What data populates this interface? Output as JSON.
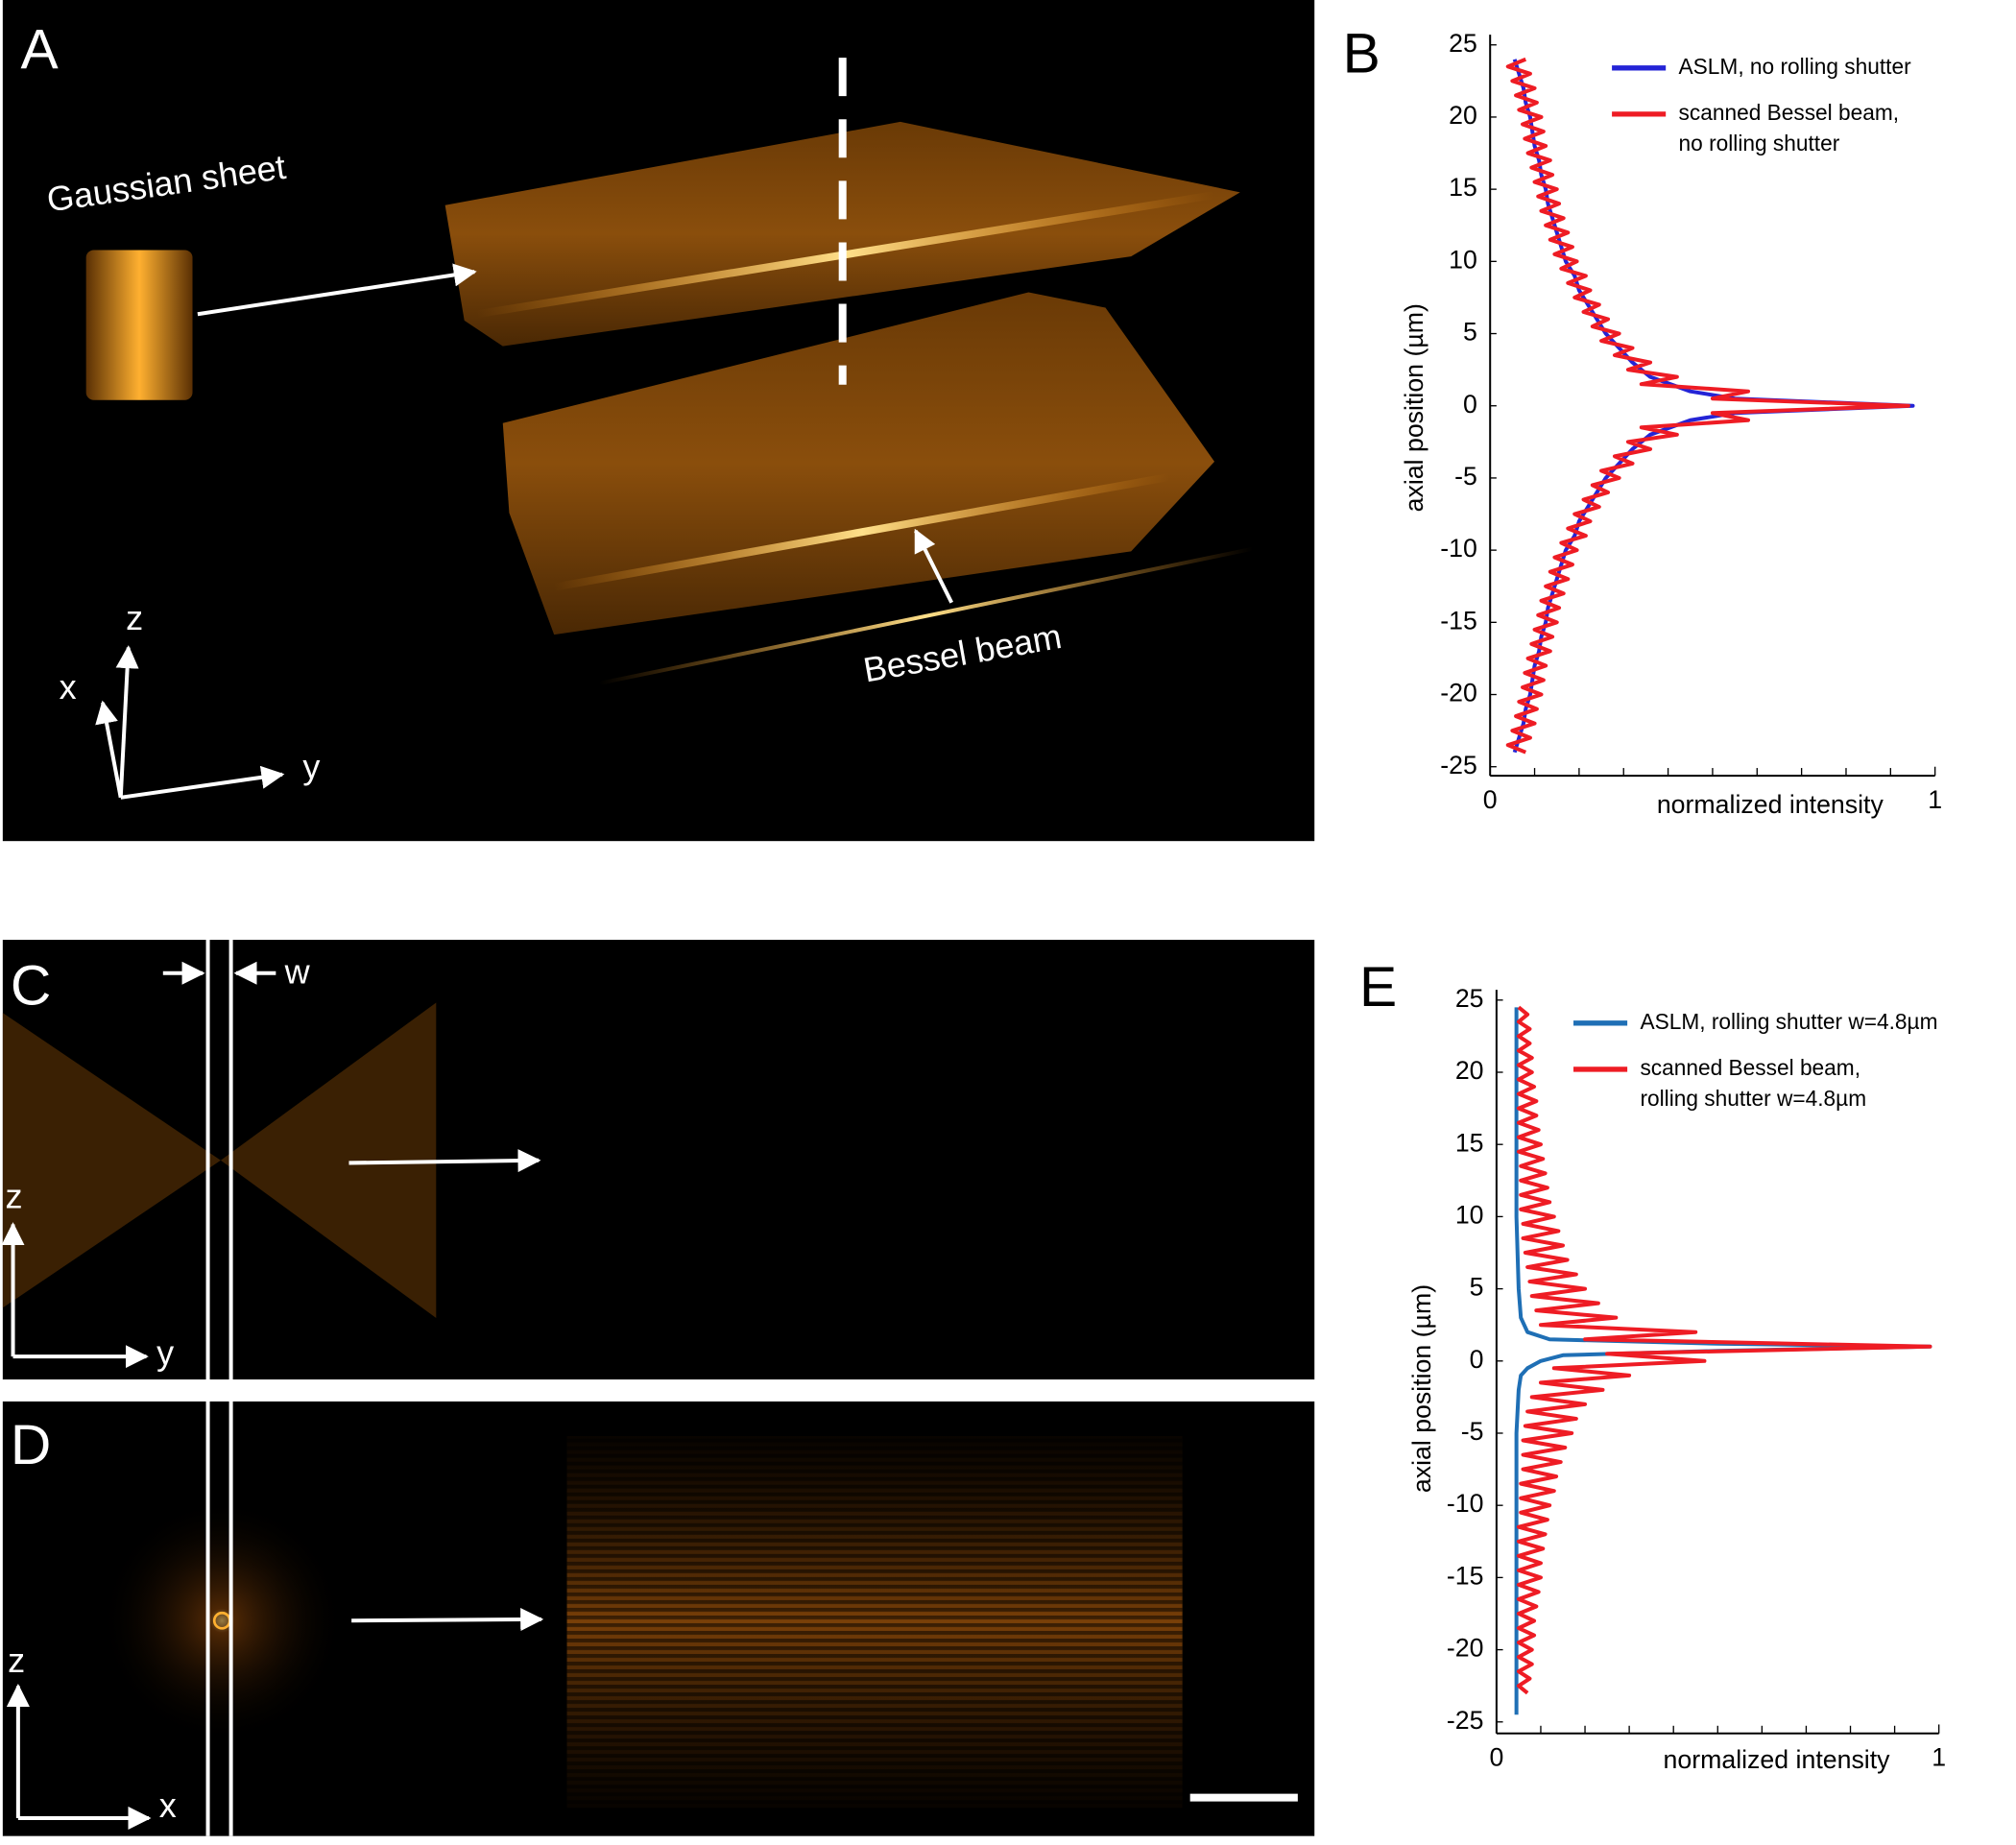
{
  "panels": {
    "A": {
      "label": "A",
      "sheet": "Gaussian sheet",
      "beam": "Bessel beam",
      "axis_x": "x",
      "axis_y": "y",
      "axis_z": "z"
    },
    "C": {
      "label": "C",
      "width": "w",
      "axis_z": "z",
      "axis_y": "y"
    },
    "D": {
      "label": "D",
      "axis_z": "z",
      "axis_x": "x"
    }
  },
  "chart_data": [
    {
      "type": "line",
      "label": "B",
      "xlabel": "normalized intensity",
      "ylabel": "axial position (µm)",
      "xlim": [
        0,
        1
      ],
      "ylim": [
        -25,
        25
      ],
      "xticks": [
        0,
        1
      ],
      "xminorticks": [
        0.1,
        0.2,
        0.3,
        0.4,
        0.5,
        0.6,
        0.7,
        0.8,
        0.9
      ],
      "yticks": [
        -25,
        -20,
        -15,
        -10,
        -5,
        0,
        5,
        10,
        15,
        20,
        25
      ],
      "series": [
        {
          "name": [
            "ASLM, no rolling shutter"
          ],
          "color": "#2424d6",
          "y": [
            24,
            23,
            22,
            21,
            20,
            19,
            18,
            17,
            16,
            15,
            14,
            13,
            12,
            11,
            10,
            9,
            8,
            7,
            6,
            5,
            4,
            3,
            2,
            1,
            0.5,
            0,
            -0.5,
            -1,
            -2,
            -3,
            -4,
            -5,
            -6,
            -7,
            -8,
            -9,
            -10,
            -11,
            -12,
            -13,
            -14,
            -15,
            -16,
            -17,
            -18,
            -19,
            -20,
            -21,
            -22,
            -23,
            -24
          ],
          "x": [
            0.055,
            0.065,
            0.075,
            0.08,
            0.09,
            0.095,
            0.1,
            0.11,
            0.115,
            0.125,
            0.13,
            0.14,
            0.15,
            0.16,
            0.17,
            0.19,
            0.2,
            0.22,
            0.24,
            0.26,
            0.29,
            0.32,
            0.36,
            0.45,
            0.55,
            0.95,
            0.55,
            0.45,
            0.36,
            0.32,
            0.29,
            0.26,
            0.24,
            0.22,
            0.2,
            0.19,
            0.17,
            0.16,
            0.15,
            0.14,
            0.13,
            0.125,
            0.115,
            0.11,
            0.1,
            0.095,
            0.09,
            0.08,
            0.075,
            0.065,
            0.055
          ]
        },
        {
          "name": [
            "scanned Bessel beam,",
            "no rolling shutter"
          ],
          "color": "#ee1c24",
          "y": [
            24,
            23.5,
            23,
            22.5,
            22,
            21.5,
            21,
            20.5,
            20,
            19.5,
            19,
            18.5,
            18,
            17.5,
            17,
            16.5,
            16,
            15.5,
            15,
            14.5,
            14,
            13.5,
            13,
            12.5,
            12,
            11.5,
            11,
            10.5,
            10,
            9.5,
            9,
            8.5,
            8,
            7.5,
            7,
            6.5,
            6,
            5.5,
            5,
            4.5,
            4,
            3.5,
            3,
            2.5,
            2,
            1.5,
            1,
            0.5,
            0,
            -0.5,
            -1,
            -1.5,
            -2,
            -2.5,
            -3,
            -3.5,
            -4,
            -4.5,
            -5,
            -5.5,
            -6,
            -6.5,
            -7,
            -7.5,
            -8,
            -8.5,
            -9,
            -9.5,
            -10,
            -10.5,
            -11,
            -11.5,
            -12,
            -12.5,
            -13,
            -13.5,
            -14,
            -14.5,
            -15,
            -15.5,
            -16,
            -16.5,
            -17,
            -17.5,
            -18,
            -18.5,
            -19,
            -19.5,
            -20,
            -20.5,
            -21,
            -21.5,
            -22,
            -22.5,
            -23,
            -23.5,
            -24
          ],
          "x": [
            0.08,
            0.04,
            0.09,
            0.05,
            0.1,
            0.058,
            0.105,
            0.065,
            0.115,
            0.073,
            0.12,
            0.078,
            0.125,
            0.085,
            0.135,
            0.093,
            0.14,
            0.1,
            0.15,
            0.108,
            0.155,
            0.115,
            0.165,
            0.125,
            0.175,
            0.135,
            0.185,
            0.145,
            0.195,
            0.16,
            0.215,
            0.175,
            0.225,
            0.19,
            0.245,
            0.21,
            0.265,
            0.23,
            0.29,
            0.25,
            0.32,
            0.28,
            0.36,
            0.31,
            0.42,
            0.34,
            0.58,
            0.5,
            0.94,
            0.5,
            0.58,
            0.34,
            0.42,
            0.31,
            0.36,
            0.28,
            0.32,
            0.25,
            0.29,
            0.23,
            0.265,
            0.21,
            0.245,
            0.19,
            0.225,
            0.175,
            0.215,
            0.16,
            0.195,
            0.145,
            0.185,
            0.135,
            0.175,
            0.125,
            0.165,
            0.115,
            0.155,
            0.108,
            0.15,
            0.1,
            0.14,
            0.093,
            0.135,
            0.085,
            0.125,
            0.078,
            0.12,
            0.073,
            0.115,
            0.065,
            0.105,
            0.058,
            0.1,
            0.05,
            0.09,
            0.04,
            0.08
          ]
        }
      ]
    },
    {
      "type": "line",
      "label": "E",
      "xlabel": "normalized intensity",
      "ylabel": "axial position (µm)",
      "xlim": [
        0,
        1
      ],
      "ylim": [
        -25,
        25
      ],
      "xticks": [
        0,
        1
      ],
      "xminorticks": [
        0.1,
        0.2,
        0.3,
        0.4,
        0.5,
        0.6,
        0.7,
        0.8,
        0.9
      ],
      "yticks": [
        -25,
        -20,
        -15,
        -10,
        -5,
        0,
        5,
        10,
        15,
        20,
        25
      ],
      "series": [
        {
          "name": [
            "ASLM, rolling shutter w=4.8µm"
          ],
          "color": "#1f6fb5",
          "y": [
            24.5,
            20,
            15,
            10,
            5,
            3,
            2,
            1.5,
            1.2,
            1,
            0.7,
            0.4,
            0,
            -0.5,
            -1,
            -2,
            -5,
            -10,
            -15,
            -20,
            -24.5
          ],
          "x": [
            0.045,
            0.045,
            0.045,
            0.045,
            0.05,
            0.055,
            0.07,
            0.12,
            0.5,
            0.98,
            0.5,
            0.15,
            0.1,
            0.07,
            0.055,
            0.05,
            0.045,
            0.045,
            0.045,
            0.045,
            0.045
          ]
        },
        {
          "name": [
            "scanned Bessel beam,",
            "rolling shutter w=4.8µm"
          ],
          "color": "#ee1c24",
          "y": [
            24.5,
            24,
            23.5,
            23,
            22.5,
            22,
            21.5,
            21,
            20.5,
            20,
            19.5,
            19,
            18.5,
            18,
            17.5,
            17,
            16.5,
            16,
            15.5,
            15,
            14.5,
            14,
            13.5,
            13,
            12.5,
            12,
            11.5,
            11,
            10.5,
            10,
            9.5,
            9,
            8.5,
            8,
            7.5,
            7,
            6.5,
            6,
            5.5,
            5,
            4.5,
            4,
            3.5,
            3,
            2.5,
            2,
            1.5,
            1,
            0.5,
            0,
            -0.5,
            -1,
            -1.5,
            -2,
            -2.5,
            -3,
            -3.5,
            -4,
            -4.5,
            -5,
            -5.5,
            -6,
            -6.5,
            -7,
            -7.5,
            -8,
            -8.5,
            -9,
            -9.5,
            -10,
            -10.5,
            -11,
            -11.5,
            -12,
            -12.5,
            -13,
            -13.5,
            -14,
            -14.5,
            -15,
            -15.5,
            -16,
            -16.5,
            -17,
            -17.5,
            -18,
            -18.5,
            -19,
            -19.5,
            -20,
            -20.5,
            -21,
            -21.5,
            -22,
            -22.5,
            -23
          ],
          "x": [
            0.05,
            0.07,
            0.05,
            0.075,
            0.05,
            0.075,
            0.05,
            0.08,
            0.05,
            0.08,
            0.05,
            0.085,
            0.05,
            0.09,
            0.05,
            0.09,
            0.05,
            0.095,
            0.05,
            0.1,
            0.05,
            0.105,
            0.055,
            0.11,
            0.055,
            0.115,
            0.055,
            0.12,
            0.055,
            0.13,
            0.06,
            0.14,
            0.06,
            0.15,
            0.065,
            0.16,
            0.07,
            0.18,
            0.075,
            0.2,
            0.08,
            0.23,
            0.09,
            0.27,
            0.1,
            0.45,
            0.2,
            0.98,
            0.25,
            0.47,
            0.13,
            0.3,
            0.1,
            0.24,
            0.08,
            0.2,
            0.07,
            0.18,
            0.065,
            0.17,
            0.06,
            0.155,
            0.06,
            0.145,
            0.06,
            0.135,
            0.055,
            0.13,
            0.055,
            0.12,
            0.055,
            0.115,
            0.05,
            0.11,
            0.05,
            0.105,
            0.05,
            0.1,
            0.05,
            0.1,
            0.05,
            0.095,
            0.05,
            0.09,
            0.05,
            0.085,
            0.05,
            0.085,
            0.05,
            0.08,
            0.05,
            0.08,
            0.05,
            0.075,
            0.05,
            0.07
          ]
        }
      ]
    }
  ]
}
